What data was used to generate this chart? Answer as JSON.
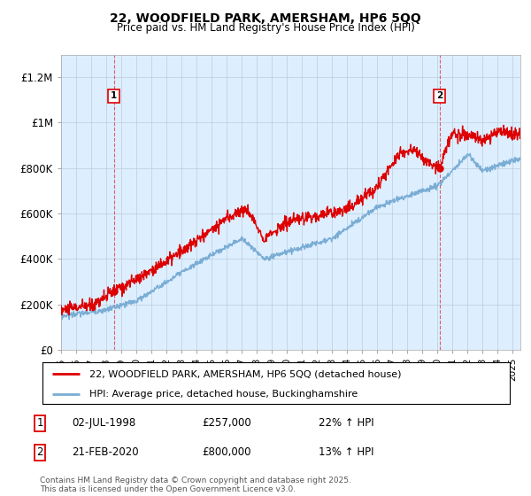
{
  "title1": "22, WOODFIELD PARK, AMERSHAM, HP6 5QQ",
  "title2": "Price paid vs. HM Land Registry's House Price Index (HPI)",
  "red_label": "22, WOODFIELD PARK, AMERSHAM, HP6 5QQ (detached house)",
  "blue_label": "HPI: Average price, detached house, Buckinghamshire",
  "annotation1_date": "02-JUL-1998",
  "annotation1_price": "£257,000",
  "annotation1_hpi": "22% ↑ HPI",
  "annotation2_date": "21-FEB-2020",
  "annotation2_price": "£800,000",
  "annotation2_hpi": "13% ↑ HPI",
  "footnote": "Contains HM Land Registry data © Crown copyright and database right 2025.\nThis data is licensed under the Open Government Licence v3.0.",
  "red_color": "#dd0000",
  "blue_color": "#7aadd4",
  "dashed_color": "#dd0000",
  "bg_chart": "#ddeeff",
  "background_color": "#ffffff",
  "grid_color": "#bbccdd",
  "ylim": [
    0,
    1300000
  ],
  "yticks": [
    0,
    200000,
    400000,
    600000,
    800000,
    1000000,
    1200000
  ],
  "ytick_labels": [
    "£0",
    "£200K",
    "£400K",
    "£600K",
    "£800K",
    "£1M",
    "£1.2M"
  ],
  "sale1_x": 1998.5,
  "sale1_y": 257000,
  "sale2_x": 2020.13,
  "sale2_y": 800000,
  "xmin": 1995,
  "xmax": 2025.5
}
